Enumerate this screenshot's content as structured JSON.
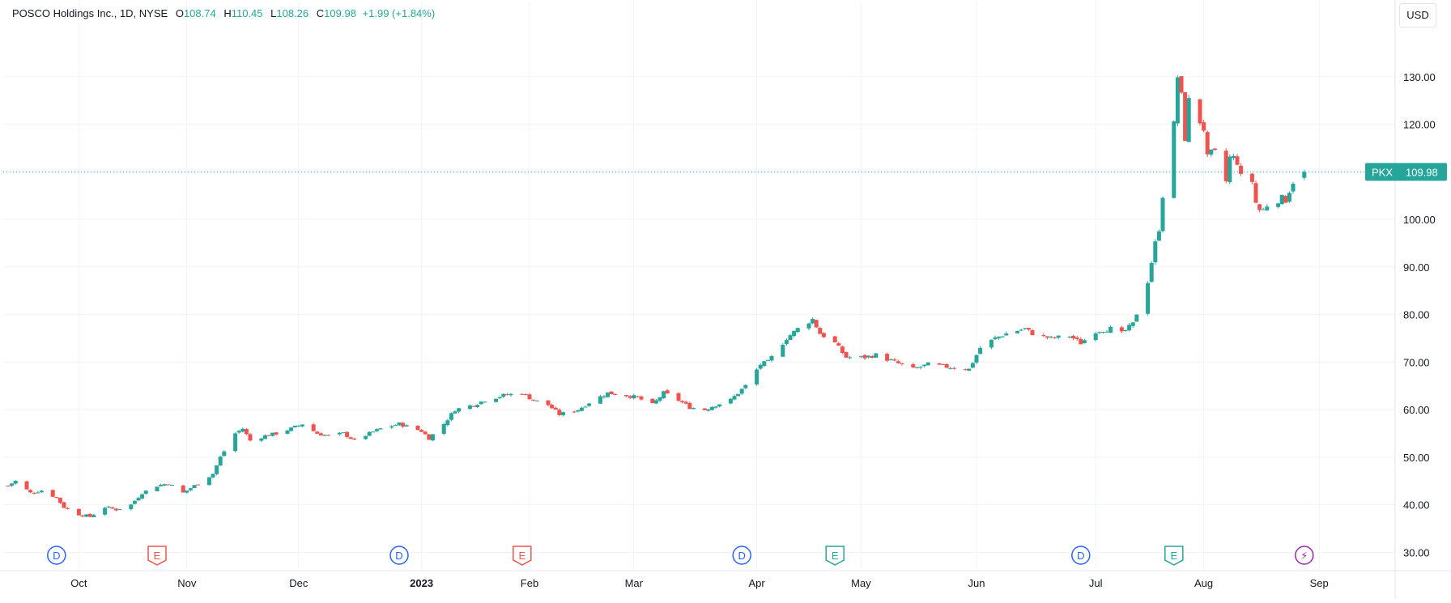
{
  "header": {
    "symbol_title": "POSCO Holdings Inc., 1D, NYSE",
    "open_label": "O",
    "open": "108.74",
    "high_label": "H",
    "high": "110.45",
    "low_label": "L",
    "low": "108.26",
    "close_label": "C",
    "close": "109.98",
    "change": "+1.99 (+1.84%)",
    "currency": "USD"
  },
  "price_tag": {
    "symbol": "PKX",
    "price": "109.98",
    "value": 109.98
  },
  "colors": {
    "up": "#26a69a",
    "down": "#ef5350",
    "grid": "#f0f3fa",
    "axis_text": "#131722",
    "dividend": "#2962ff",
    "earnings_past": "#ef5350",
    "earnings_recent": "#26a69a",
    "split": "#9c27b0"
  },
  "events": [
    {
      "type": "dividend",
      "label": "D",
      "date": "2022-09-27"
    },
    {
      "type": "earnings",
      "label": "E",
      "date": "2022-10-24",
      "outcome": "miss"
    },
    {
      "type": "dividend",
      "label": "D",
      "date": "2022-12-28"
    },
    {
      "type": "earnings",
      "label": "E",
      "date": "2023-01-30",
      "outcome": "miss"
    },
    {
      "type": "dividend",
      "label": "D",
      "date": "2023-03-30"
    },
    {
      "type": "earnings",
      "label": "E",
      "date": "2023-04-24",
      "outcome": "beat"
    },
    {
      "type": "dividend",
      "label": "D",
      "date": "2023-06-29"
    },
    {
      "type": "earnings",
      "label": "E",
      "date": "2023-07-24",
      "outcome": "beat"
    },
    {
      "type": "upcoming",
      "label": "⚡",
      "date": "2023-08-28"
    }
  ],
  "chart_data": {
    "type": "candlestick",
    "y_ticks": [
      "30.00",
      "40.00",
      "50.00",
      "60.00",
      "70.00",
      "80.00",
      "90.00",
      "100.00",
      "110.00",
      "120.00",
      "130.00"
    ],
    "ylim": [
      27,
      140
    ],
    "x_ticks": [
      {
        "label": "Oct",
        "date": "2022-10-03"
      },
      {
        "label": "Nov",
        "date": "2022-11-01"
      },
      {
        "label": "Dec",
        "date": "2022-12-01"
      },
      {
        "label": "2023",
        "date": "2023-01-03",
        "bold": true
      },
      {
        "label": "Feb",
        "date": "2023-02-01"
      },
      {
        "label": "Mar",
        "date": "2023-03-01"
      },
      {
        "label": "Apr",
        "date": "2023-04-03"
      },
      {
        "label": "May",
        "date": "2023-05-01"
      },
      {
        "label": "Jun",
        "date": "2023-06-01"
      },
      {
        "label": "Jul",
        "date": "2023-07-03"
      },
      {
        "label": "Aug",
        "date": "2023-08-01"
      },
      {
        "label": "Sep",
        "date": "2023-09-01"
      }
    ],
    "xlim": [
      "2022-09-14",
      "2023-09-14"
    ],
    "path": [
      [
        "2022-09-14",
        44
      ],
      [
        "2022-09-16",
        45
      ],
      [
        "2022-09-20",
        42.5
      ],
      [
        "2022-09-23",
        43
      ],
      [
        "2022-09-27",
        41.5
      ],
      [
        "2022-09-29",
        39.5
      ],
      [
        "2022-10-03",
        38
      ],
      [
        "2022-10-06",
        37.5
      ],
      [
        "2022-10-10",
        39.5
      ],
      [
        "2022-10-13",
        39
      ],
      [
        "2022-10-17",
        40
      ],
      [
        "2022-10-20",
        42.5
      ],
      [
        "2022-10-24",
        44
      ],
      [
        "2022-10-27",
        44.5
      ],
      [
        "2022-10-31",
        42.5
      ],
      [
        "2022-11-02",
        43.5
      ],
      [
        "2022-11-04",
        44.5
      ],
      [
        "2022-11-08",
        46.5
      ],
      [
        "2022-11-10",
        50
      ],
      [
        "2022-11-14",
        55
      ],
      [
        "2022-11-16",
        56
      ],
      [
        "2022-11-18",
        53.5
      ],
      [
        "2022-11-22",
        54.5
      ],
      [
        "2022-11-25",
        55
      ],
      [
        "2022-11-29",
        56
      ],
      [
        "2022-12-02",
        57
      ],
      [
        "2022-12-06",
        55
      ],
      [
        "2022-12-09",
        54.5
      ],
      [
        "2022-12-13",
        55
      ],
      [
        "2022-12-16",
        53.5
      ],
      [
        "2022-12-20",
        55
      ],
      [
        "2022-12-23",
        56
      ],
      [
        "2022-12-28",
        57
      ],
      [
        "2023-01-03",
        55.5
      ],
      [
        "2023-01-05",
        54
      ],
      [
        "2023-01-09",
        57
      ],
      [
        "2023-01-12",
        60
      ],
      [
        "2023-01-17",
        61
      ],
      [
        "2023-01-20",
        62
      ],
      [
        "2023-01-25",
        63
      ],
      [
        "2023-01-30",
        63.5
      ],
      [
        "2023-02-02",
        62
      ],
      [
        "2023-02-06",
        61
      ],
      [
        "2023-02-09",
        59
      ],
      [
        "2023-02-14",
        60
      ],
      [
        "2023-02-17",
        61.5
      ],
      [
        "2023-02-22",
        63.5
      ],
      [
        "2023-02-27",
        63
      ],
      [
        "2023-03-02",
        62.5
      ],
      [
        "2023-03-06",
        61
      ],
      [
        "2023-03-09",
        63.5
      ],
      [
        "2023-03-13",
        62
      ],
      [
        "2023-03-16",
        60.5
      ],
      [
        "2023-03-20",
        60
      ],
      [
        "2023-03-23",
        61
      ],
      [
        "2023-03-27",
        62
      ],
      [
        "2023-03-31",
        65
      ],
      [
        "2023-04-04",
        69.5
      ],
      [
        "2023-04-06",
        70
      ],
      [
        "2023-04-11",
        75
      ],
      [
        "2023-04-14",
        77
      ],
      [
        "2023-04-18",
        79
      ],
      [
        "2023-04-20",
        76
      ],
      [
        "2023-04-24",
        74
      ],
      [
        "2023-04-27",
        71
      ],
      [
        "2023-05-02",
        71
      ],
      [
        "2023-05-05",
        71.5
      ],
      [
        "2023-05-10",
        70
      ],
      [
        "2023-05-15",
        68.5
      ],
      [
        "2023-05-19",
        69.5
      ],
      [
        "2023-05-24",
        69
      ],
      [
        "2023-05-30",
        68.5
      ],
      [
        "2023-06-02",
        73
      ],
      [
        "2023-06-06",
        75
      ],
      [
        "2023-06-09",
        76
      ],
      [
        "2023-06-14",
        77
      ],
      [
        "2023-06-16",
        76
      ],
      [
        "2023-06-21",
        75
      ],
      [
        "2023-06-26",
        75.5
      ],
      [
        "2023-06-29",
        74
      ],
      [
        "2023-07-03",
        76.5
      ],
      [
        "2023-07-07",
        77
      ],
      [
        "2023-07-10",
        76
      ],
      [
        "2023-07-13",
        78
      ],
      [
        "2023-07-17",
        87
      ],
      [
        "2023-07-19",
        95
      ],
      [
        "2023-07-20",
        98
      ],
      [
        "2023-07-21",
        105
      ],
      [
        "2023-07-24",
        120
      ],
      [
        "2023-07-25",
        130
      ],
      [
        "2023-07-26",
        126
      ],
      [
        "2023-07-27",
        117
      ],
      [
        "2023-07-28",
        125
      ],
      [
        "2023-07-31",
        120.5
      ],
      [
        "2023-08-01",
        119
      ],
      [
        "2023-08-02",
        113
      ],
      [
        "2023-08-03",
        114
      ],
      [
        "2023-08-04",
        114
      ],
      [
        "2023-08-07",
        108
      ],
      [
        "2023-08-08",
        113
      ],
      [
        "2023-08-09",
        113
      ],
      [
        "2023-08-10",
        112
      ],
      [
        "2023-08-11",
        109
      ],
      [
        "2023-08-14",
        108
      ],
      [
        "2023-08-15",
        103.5
      ],
      [
        "2023-08-16",
        102
      ],
      [
        "2023-08-17",
        102
      ],
      [
        "2023-08-18",
        103
      ],
      [
        "2023-08-21",
        104
      ],
      [
        "2023-08-22",
        104.5
      ],
      [
        "2023-08-23",
        104
      ],
      [
        "2023-08-24",
        106
      ],
      [
        "2023-08-25",
        107.9
      ],
      [
        "2023-08-28",
        109.98
      ]
    ]
  }
}
